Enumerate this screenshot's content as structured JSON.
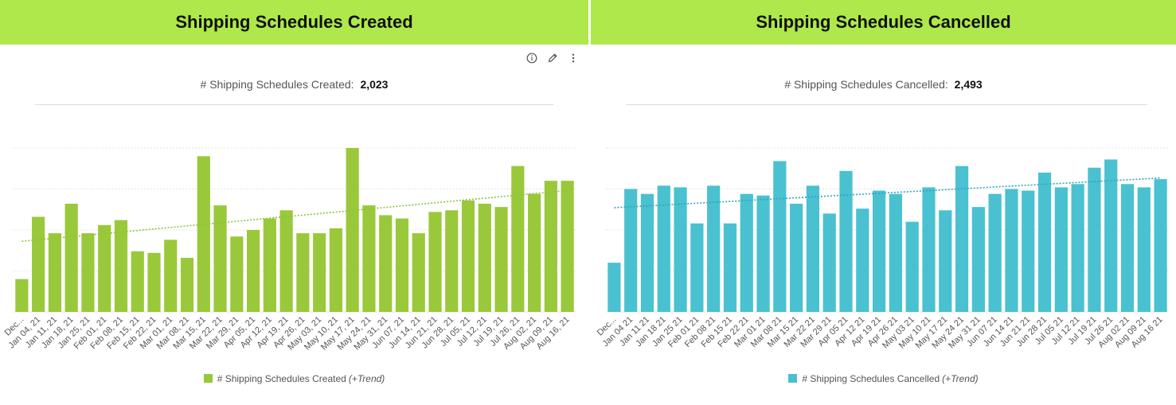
{
  "left": {
    "header": "Shipping Schedules Created",
    "kpi_label": "# Shipping Schedules Created:",
    "kpi_value": "2,023",
    "legend_label": "# Shipping Schedules Created",
    "legend_suffix": "(+Trend)",
    "color": "#99c93a",
    "trend_color": "#8cc43a",
    "toolbar": {
      "info_icon": "info-icon",
      "edit_icon": "pencil-icon",
      "more_icon": "more-vertical-icon"
    }
  },
  "right": {
    "header": "Shipping Schedules Cancelled",
    "kpi_label": "# Shipping Schedules Cancelled:",
    "kpi_value": "2,493",
    "legend_label": "# Shipping Schedules Cancelled",
    "legend_suffix": "(+Trend)",
    "color": "#4ac1d0",
    "trend_color": "#2ba7c0"
  },
  "chart_data": [
    {
      "type": "bar",
      "title": "Shipping Schedules Created",
      "ylim": [
        0,
        100
      ],
      "grid": true,
      "trendline": true,
      "categories": [
        "Dec...",
        "Jan 04, 21",
        "Jan 11, 21",
        "Jan 18, 21",
        "Jan 25, 21",
        "Feb 01, 21",
        "Feb 08, 21",
        "Feb 15, 21",
        "Feb 22, 21",
        "Mar 01, 21",
        "Mar 08, 21",
        "Mar 15, 21",
        "Mar 22, 21",
        "Mar 29, 21",
        "Apr 05, 21",
        "Apr 12, 21",
        "Apr 19, 21",
        "Apr 26, 21",
        "May 03, 21",
        "May 10, 21",
        "May 17, 21",
        "May 24, 21",
        "May 31, 21",
        "Jun 07, 21",
        "Jun 14, 21",
        "Jun 21, 21",
        "Jun 28, 21",
        "Jul 05, 21",
        "Jul 12, 21",
        "Jul 19, 21",
        "Jul 26, 21",
        "Aug 02, 21",
        "Aug 09, 21",
        "Aug 16, 21"
      ],
      "series": [
        {
          "name": "# Shipping Schedules Created",
          "values": [
            20,
            58,
            48,
            66,
            48,
            53,
            56,
            37,
            36,
            44,
            33,
            95,
            65,
            46,
            50,
            57,
            62,
            48,
            48,
            51,
            100,
            65,
            59,
            57,
            48,
            61,
            62,
            68,
            66,
            64,
            89,
            72,
            80,
            80
          ]
        }
      ]
    },
    {
      "type": "bar",
      "title": "Shipping Schedules Cancelled",
      "ylim": [
        0,
        100
      ],
      "grid": true,
      "trendline": true,
      "categories": [
        "Dec...",
        "Jan 04 21",
        "Jan 11 21",
        "Jan 18 21",
        "Jan 25 21",
        "Feb 01 21",
        "Feb 08 21",
        "Feb 15 21",
        "Feb 22 21",
        "Mar 01 21",
        "Mar 08 21",
        "Mar 15 21",
        "Mar 22 21",
        "Mar 29 21",
        "Apr 05 21",
        "Apr 12 21",
        "Apr 19 21",
        "Apr 26 21",
        "May 03 21",
        "May 10 21",
        "May 17 21",
        "May 24 21",
        "May 31 21",
        "Jun 07 21",
        "Jun 14 21",
        "Jun 21 21",
        "Jun 28 21",
        "Jul 05 21",
        "Jul 12 21",
        "Jul 19 21",
        "Jul 26 21",
        "Aug 02 21",
        "Aug 09 21",
        "Aug 16 21"
      ],
      "series": [
        {
          "name": "# Shipping Schedules Cancelled",
          "values": [
            30,
            75,
            72,
            77,
            76,
            54,
            77,
            54,
            72,
            71,
            92,
            66,
            77,
            60,
            86,
            63,
            74,
            72,
            55,
            76,
            62,
            89,
            64,
            72,
            75,
            74,
            85,
            76,
            78,
            88,
            93,
            78,
            76,
            81
          ]
        }
      ]
    }
  ]
}
